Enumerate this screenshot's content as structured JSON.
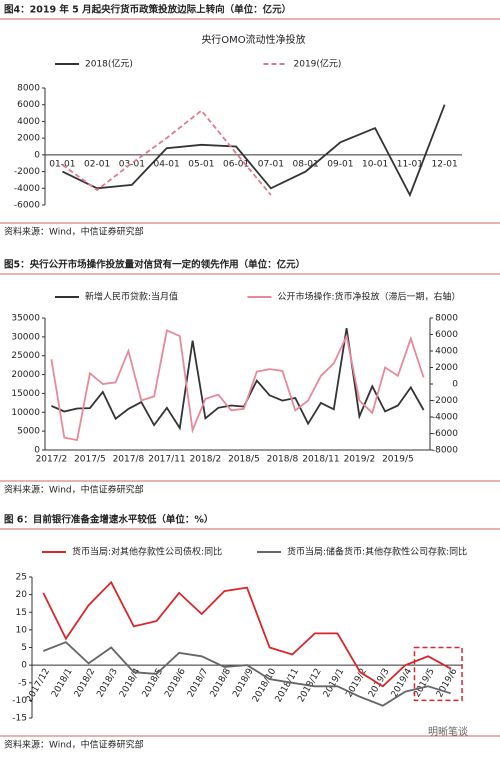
{
  "watermark": "明晰笔谈",
  "chart_data": [
    {
      "type": "line",
      "caption": "图4：2019 年 5 月起央行货币政策投放边际上转向（单位：亿元）",
      "title": "央行OMO流动性净投放",
      "source": "资料来源：Wind，中信证券研究部",
      "categories": [
        "01-01",
        "02-01",
        "03-01",
        "04-01",
        "05-01",
        "06-01",
        "07-01",
        "08-01",
        "09-01",
        "10-01",
        "11-01",
        "12-01"
      ],
      "series": [
        {
          "name": "2018(亿元)",
          "color": "#333333",
          "dashed": false,
          "values": [
            -2000,
            -4000,
            -3600,
            800,
            1200,
            1000,
            -4000,
            -2000,
            1500,
            3200,
            -4800,
            6000
          ]
        },
        {
          "name": "2019(亿元)",
          "color": "#e07a8e",
          "dashed": true,
          "values": [
            -1200,
            -4200,
            -1000,
            2000,
            5300,
            200,
            -4800,
            null,
            null,
            null,
            null,
            null
          ]
        }
      ],
      "ylim": [
        -6000,
        8000
      ],
      "yticks": [
        -6000,
        -4000,
        -2000,
        0,
        2000,
        4000,
        6000,
        8000
      ],
      "legend": "top"
    },
    {
      "type": "line",
      "caption": "图5：央行公开市场操作投放量对信贷有一定的领先作用（单位：亿元）",
      "source": "资料来源：Wind，中信证券研究部",
      "categories": [
        "2017/2",
        null,
        null,
        "2017/5",
        null,
        null,
        "2017/8",
        null,
        null,
        "2017/11",
        null,
        null,
        "2018/2",
        null,
        null,
        "2018/5",
        null,
        null,
        "2018/8",
        null,
        null,
        "2018/11",
        null,
        null,
        "2019/2",
        null,
        null,
        "2019/5",
        null,
        null
      ],
      "series": [
        {
          "name": "新增人民币贷款:当月值",
          "color": "#333333",
          "values": [
            11700,
            10200,
            11000,
            11100,
            15400,
            8300,
            10900,
            12700,
            6600,
            11200,
            5800,
            29000,
            8400,
            11200,
            11800,
            11500,
            18400,
            14500,
            13100,
            13800,
            6970,
            12500,
            10800,
            32300,
            8900,
            16900,
            10200,
            11800,
            16600,
            10600
          ]
        },
        {
          "name": "公开市场操作:货币净投放（滞后一期，右轴）",
          "color": "#e8899a",
          "axis": "y2",
          "values": [
            3000,
            -6500,
            -6800,
            1300,
            0,
            200,
            4000,
            -2000,
            -1500,
            6500,
            5800,
            -5600,
            -1800,
            -1300,
            -3200,
            -3000,
            1500,
            1800,
            1600,
            -3200,
            -2000,
            1000,
            2500,
            5800,
            -2000,
            -3500,
            2000,
            1000,
            5500,
            800
          ]
        }
      ],
      "ylim": [
        0,
        35000
      ],
      "yticks": [
        0,
        5000,
        10000,
        15000,
        20000,
        25000,
        30000,
        35000
      ],
      "y2lim": [
        -8000,
        8000
      ],
      "y2ticks": [
        -8000,
        -6000,
        -4000,
        -2000,
        0,
        2000,
        4000,
        6000,
        8000
      ],
      "legend": "top"
    },
    {
      "type": "line",
      "caption": "图 6：目前银行准备金增速水平较低（单位：%）",
      "source": "资料来源：Wind，中信证券研究部",
      "categories": [
        "2017/12",
        "2018/1",
        "2018/2",
        "2018/3",
        "2018/4",
        "2018/5",
        "2018/6",
        "2018/7",
        "2018/8",
        "2018/9",
        "2018/10",
        "2018/11",
        "2018/12",
        "2019/1",
        "2019/2",
        "2019/3",
        "2019/4",
        "2019/5",
        "2019/6"
      ],
      "series": [
        {
          "name": "货币当局:对其他存款性公司债权:同比",
          "color": "#d9262b",
          "values": [
            20.5,
            7.5,
            17,
            23.5,
            11,
            12.5,
            20.5,
            14.5,
            21,
            22,
            5,
            3,
            9,
            9,
            -2,
            -6,
            0,
            2.5,
            -1
          ]
        },
        {
          "name": "货币当局:储备货币:其他存款性公司存款:同比",
          "color": "#666666",
          "values": [
            4,
            6.5,
            0.5,
            5,
            -2,
            -2.5,
            3.5,
            2.5,
            -0.5,
            0,
            -4,
            -5,
            -6,
            -6,
            -9,
            -11.5,
            -7.5,
            -6,
            -8
          ]
        }
      ],
      "ylim": [
        -15,
        25
      ],
      "yticks": [
        -15,
        -10,
        -5,
        0,
        5,
        10,
        15,
        20,
        25
      ],
      "legend": "top"
    }
  ]
}
